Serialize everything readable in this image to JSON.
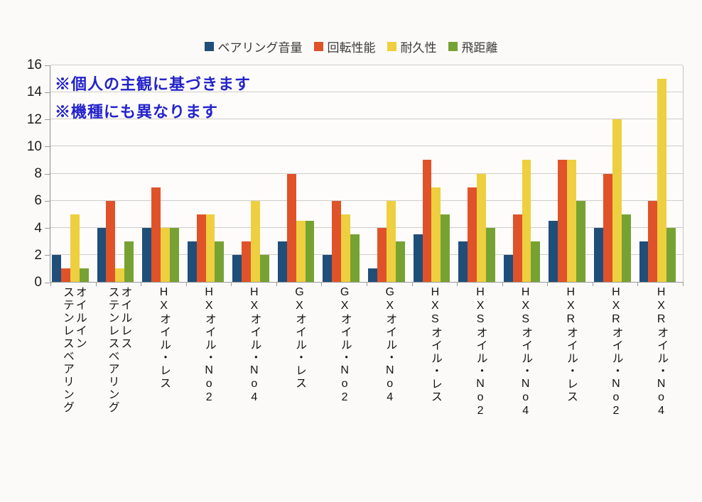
{
  "annotation": {
    "color": "#2323CB"
  },
  "chart_data": {
    "type": "bar",
    "categories": [
      "オイルイン\nステンレスベアリング",
      "オイルレス\nステンレスベアリング",
      "HXオイル・レス",
      "HXオイル・No2",
      "HXオイル・No4",
      "GXオイル・レス",
      "GXオイル・No2",
      "GXオイル・No4",
      "HXSオイル・レス",
      "HXSオイル・No2",
      "HXSオイル・No4",
      "HXRオイル・レス",
      "HXRオイル・No2",
      "HXRオイル・No4"
    ],
    "series": [
      {
        "name": "ベアリング音量",
        "color": "#1F4E79",
        "values": [
          2,
          4,
          4,
          3,
          2,
          3,
          2,
          1,
          3.5,
          3,
          2,
          4.5,
          4,
          3
        ]
      },
      {
        "name": "回転性能",
        "color": "#E0522A",
        "values": [
          1,
          6,
          7,
          5,
          3,
          8,
          6,
          4,
          9,
          7,
          5,
          9,
          8,
          6
        ]
      },
      {
        "name": "耐久性",
        "color": "#EECF3F",
        "values": [
          5,
          1,
          4,
          5,
          6,
          4.5,
          5,
          6,
          7,
          8,
          9,
          9,
          12,
          15
        ]
      },
      {
        "name": "飛距離",
        "color": "#76A233",
        "values": [
          1,
          3,
          4,
          3,
          2,
          4.5,
          3.5,
          3,
          5,
          4,
          3,
          6,
          5,
          4
        ]
      }
    ],
    "ylim": [
      0,
      16
    ],
    "y_ticks": [
      0,
      2,
      4,
      6,
      8,
      10,
      12,
      14,
      16
    ],
    "grid": true,
    "legend_position": "top",
    "annotations": [
      "※個人の主観に基づきます",
      "※機種にも異なります"
    ]
  }
}
